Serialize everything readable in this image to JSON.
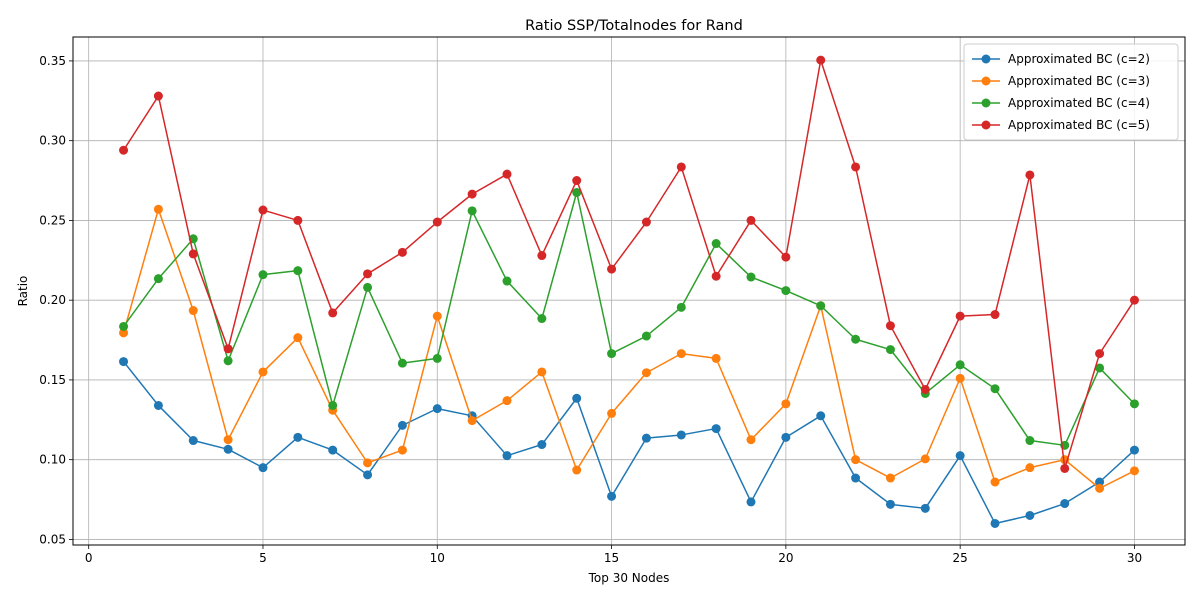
{
  "chart_data": {
    "type": "line",
    "title": "Ratio SSP/Totalnodes for Rand",
    "xlabel": "Top 30 Nodes",
    "ylabel": "Ratio",
    "xlim": [
      -0.45,
      31.45
    ],
    "ylim": [
      0.0465,
      0.365
    ],
    "xticks": [
      0,
      5,
      10,
      15,
      20,
      25,
      30
    ],
    "yticks": [
      0.05,
      0.1,
      0.15,
      0.2,
      0.25,
      0.3,
      0.35
    ],
    "grid": true,
    "legend_position": "top-right",
    "x": [
      1,
      2,
      3,
      4,
      5,
      6,
      7,
      8,
      9,
      10,
      11,
      12,
      13,
      14,
      15,
      16,
      17,
      18,
      19,
      20,
      21,
      22,
      23,
      24,
      25,
      26,
      27,
      28,
      29,
      30
    ],
    "series": [
      {
        "name": "Approximated BC (c=2)",
        "color": "#1f77b4",
        "values": [
          0.1615,
          0.134,
          0.112,
          0.1065,
          0.095,
          0.114,
          0.106,
          0.0905,
          0.1215,
          0.132,
          0.1275,
          0.1025,
          0.1095,
          0.1385,
          0.077,
          0.1135,
          0.1155,
          0.1195,
          0.0735,
          0.114,
          0.1275,
          0.0885,
          0.072,
          0.0695,
          0.1025,
          0.06,
          0.065,
          0.0725,
          0.086,
          0.106
        ]
      },
      {
        "name": "Approximated BC (c=3)",
        "color": "#ff7f0e",
        "values": [
          0.1795,
          0.257,
          0.1935,
          0.1125,
          0.155,
          0.1765,
          0.131,
          0.098,
          0.106,
          0.19,
          0.1245,
          0.137,
          0.155,
          0.0935,
          0.129,
          0.1545,
          0.1665,
          0.1635,
          0.1125,
          0.135,
          0.1965,
          0.1,
          0.0885,
          0.1005,
          0.151,
          0.086,
          0.095,
          0.1,
          0.082,
          0.093
        ]
      },
      {
        "name": "Approximated BC (c=4)",
        "color": "#2ca02c",
        "values": [
          0.1835,
          0.2135,
          0.2385,
          0.162,
          0.216,
          0.2185,
          0.134,
          0.208,
          0.1605,
          0.1635,
          0.256,
          0.212,
          0.1885,
          0.2675,
          0.1665,
          0.1775,
          0.1955,
          0.2355,
          0.2145,
          0.206,
          0.1965,
          0.1755,
          0.169,
          0.1415,
          0.1595,
          0.1445,
          0.112,
          0.109,
          0.1575,
          0.135
        ]
      },
      {
        "name": "Approximated BC (c=5)",
        "color": "#d62728",
        "values": [
          0.294,
          0.328,
          0.229,
          0.1695,
          0.2565,
          0.25,
          0.192,
          0.2165,
          0.23,
          0.249,
          0.2665,
          0.279,
          0.228,
          0.275,
          0.2195,
          0.249,
          0.2835,
          0.215,
          0.25,
          0.227,
          0.3505,
          0.2835,
          0.184,
          0.144,
          0.19,
          0.191,
          0.2785,
          0.0945,
          0.1665,
          0.2
        ]
      }
    ]
  }
}
